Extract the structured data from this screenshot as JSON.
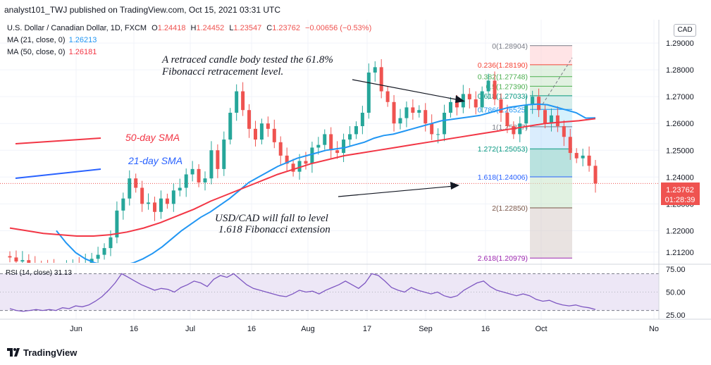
{
  "header": {
    "publisher": "analyst101_TWJ published on TradingView.com, Oct 15, 2021 03:31 UTC"
  },
  "legend": {
    "symbol": "U.S. Dollar / Canadian Dollar, 1D, FXCM",
    "ohlc": {
      "o_label": "O",
      "o": "1.24418",
      "h_label": "H",
      "h": "1.24452",
      "l_label": "L",
      "l": "1.23547",
      "c_label": "C",
      "c": "1.23762",
      "chg": "−0.00656 (−0.53%)"
    },
    "ma21_label": "MA (21, close, 0)",
    "ma21_value": "1.26213",
    "ma50_label": "MA (50, close, 0)",
    "ma50_value": "1.26181"
  },
  "currency_badge": "CAD",
  "price_badge": {
    "price": "1.23762",
    "countdown": "01:28:39"
  },
  "annotations": {
    "top_line1": "A retraced candle body tested the 61.8%",
    "top_line2": "Fibonacci retracement level.",
    "bottom_line1": "USD/CAD will fall to level",
    "bottom_line2": "1.618 Fibonacci extension",
    "sma50": "50-day SMA",
    "sma21": "21-day SMA"
  },
  "rsi_label": "RSI (14, close) 31.13",
  "footer": {
    "brand": "TradingView"
  },
  "colors": {
    "up": "#26a69a",
    "down": "#ef5350",
    "ma21": "#2196f3",
    "ma50": "#f23645",
    "rsi_line": "#7e57c2",
    "rsi_band": "#ede7f6",
    "text": "#131722"
  },
  "chart_data": [
    {
      "type": "candlestick",
      "title": "U.S. Dollar / Canadian Dollar, 1D, FXCM",
      "x_tick_labels": [
        "Jun",
        "16",
        "Jul",
        "16",
        "Aug",
        "17",
        "Sep",
        "16",
        "Oct",
        "No"
      ],
      "y_tick_labels": [
        "1.21200",
        "1.22000",
        "1.23000",
        "1.24000",
        "1.25000",
        "1.26000",
        "1.27000",
        "1.28000",
        "1.29000"
      ],
      "ylim": [
        1.209,
        1.3
      ],
      "grid": true,
      "closes": [
        1.21,
        1.2085,
        1.209,
        1.2075,
        1.207,
        1.2065,
        1.206,
        1.2055,
        1.205,
        1.206,
        1.2075,
        1.2072,
        1.208,
        1.2095,
        1.211,
        1.2135,
        1.2175,
        1.2275,
        1.232,
        1.2395,
        1.236,
        1.23,
        1.2305,
        1.227,
        1.232,
        1.23,
        1.235,
        1.236,
        1.241,
        1.243,
        1.238,
        1.2395,
        1.25,
        1.243,
        1.254,
        1.264,
        1.272,
        1.265,
        1.258,
        1.254,
        1.26,
        1.258,
        1.253,
        1.248,
        1.245,
        1.242,
        1.246,
        1.245,
        1.251,
        1.252,
        1.256,
        1.25,
        1.249,
        1.254,
        1.256,
        1.259,
        1.264,
        1.279,
        1.281,
        1.272,
        1.268,
        1.26,
        1.262,
        1.266,
        1.264,
        1.265,
        1.26,
        1.256,
        1.256,
        1.264,
        1.268,
        1.266,
        1.271,
        1.269,
        1.266,
        1.272,
        1.276,
        1.269,
        1.264,
        1.259,
        1.256,
        1.26,
        1.267,
        1.27,
        1.265,
        1.26,
        1.263,
        1.259,
        1.255,
        1.249,
        1.247,
        1.248,
        1.2442,
        1.2376
      ],
      "series": [
        {
          "name": "MA (21, close, 0)",
          "last": 1.26213,
          "values": [
            1.22,
            1.2155,
            1.2118,
            1.2095,
            1.208,
            1.2072,
            1.207,
            1.2072,
            1.208,
            1.2095,
            1.2115,
            1.214,
            1.217,
            1.22,
            1.2225,
            1.225,
            1.227,
            1.2295,
            1.232,
            1.235,
            1.238,
            1.24,
            1.242,
            1.244,
            1.2455,
            1.247,
            1.248,
            1.249,
            1.25,
            1.2505,
            1.251,
            1.252,
            1.253,
            1.2545,
            1.2555,
            1.256,
            1.257,
            1.258,
            1.259,
            1.26,
            1.261,
            1.2615,
            1.262,
            1.2625,
            1.263,
            1.264,
            1.265,
            1.266,
            1.2665,
            1.267,
            1.2672,
            1.267,
            1.266,
            1.265,
            1.264,
            1.262,
            1.2621
          ]
        },
        {
          "name": "MA (50, close, 0)",
          "last": 1.26181,
          "values": [
            1.221,
            1.22,
            1.219,
            1.2185,
            1.218,
            1.218,
            1.2185,
            1.2195,
            1.221,
            1.223,
            1.2255,
            1.228,
            1.231,
            1.2335,
            1.236,
            1.2385,
            1.241,
            1.243,
            1.245,
            1.2465,
            1.248,
            1.249,
            1.25,
            1.251,
            1.252,
            1.253,
            1.254,
            1.255,
            1.256,
            1.257,
            1.258,
            1.259,
            1.26,
            1.2605,
            1.261,
            1.2618
          ]
        }
      ],
      "fibonacci": [
        {
          "label": "0(1.28904)",
          "value": 1.28904
        },
        {
          "label": "0.236(1.28190)",
          "value": 1.2819
        },
        {
          "label": "0.382(1.27748)",
          "value": 1.27748
        },
        {
          "label": "0.5(1.27390)",
          "value": 1.2739
        },
        {
          "label": "0.618(1.27033)",
          "value": 1.27033
        },
        {
          "label": "0.786(1.26525)",
          "value": 1.26525
        },
        {
          "label": "1(1.25877)",
          "value": 1.25877
        },
        {
          "label": "1.272(1.25053)",
          "value": 1.25053
        },
        {
          "label": "1.618(1.24006)",
          "value": 1.24006
        },
        {
          "label": "2(1.22850)",
          "value": 1.2285
        },
        {
          "label": "2.618(1.20979)",
          "value": 1.20979
        }
      ]
    },
    {
      "type": "line",
      "title": "RSI (14, close)",
      "y_tick_labels": [
        "75.00",
        "50.00",
        "25.00"
      ],
      "ylim": [
        20,
        80
      ],
      "bands": [
        30,
        70
      ],
      "last": 31.13,
      "values": [
        32,
        30,
        29,
        30,
        31,
        30,
        31,
        30,
        33,
        32,
        35,
        34,
        36,
        40,
        45,
        52,
        60,
        70,
        66,
        62,
        58,
        55,
        52,
        54,
        53,
        50,
        55,
        58,
        62,
        60,
        56,
        64,
        68,
        66,
        70,
        64,
        58,
        54,
        52,
        50,
        48,
        46,
        45,
        48,
        52,
        50,
        51,
        48,
        52,
        55,
        58,
        62,
        58,
        54,
        60,
        70,
        68,
        62,
        55,
        52,
        50,
        55,
        52,
        50,
        48,
        50,
        46,
        44,
        46,
        52,
        56,
        60,
        62,
        56,
        52,
        50,
        48,
        46,
        48,
        46,
        42,
        40,
        41,
        38,
        36,
        35,
        36,
        34,
        33,
        31
      ]
    }
  ]
}
